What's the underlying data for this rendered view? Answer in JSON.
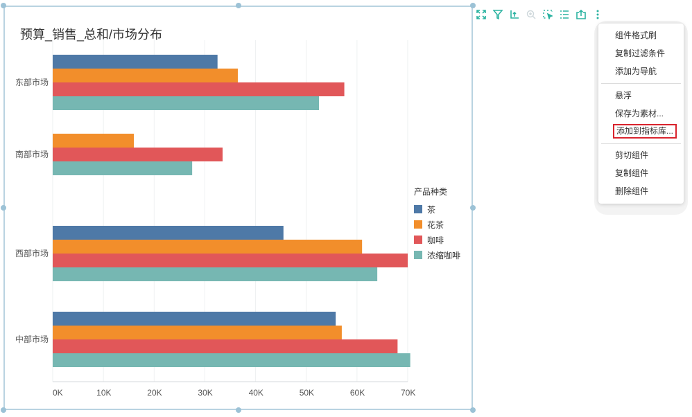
{
  "widget": {
    "title": "预算_销售_总和/市场分布"
  },
  "chart_data": {
    "type": "bar",
    "orientation": "horizontal",
    "title": "预算_销售_总和/市场分布",
    "categories": [
      "东部市场",
      "南部市场",
      "西部市场",
      "中部市场"
    ],
    "series": [
      {
        "name": "茶",
        "color": "#4e79a7",
        "values": [
          32500,
          null,
          45500,
          55800
        ]
      },
      {
        "name": "花茶",
        "color": "#f28e2b",
        "values": [
          36500,
          16000,
          61000,
          57000
        ]
      },
      {
        "name": "咖啡",
        "color": "#e15759",
        "values": [
          57500,
          33500,
          70000,
          68000
        ]
      },
      {
        "name": "浓缩咖啡",
        "color": "#76b7b2",
        "values": [
          52500,
          27500,
          64000,
          70500
        ]
      }
    ],
    "xlim": [
      0,
      70000
    ],
    "xticks": [
      "0K",
      "10K",
      "20K",
      "30K",
      "40K",
      "50K",
      "60K",
      "70K"
    ],
    "legend_title": "产品种类",
    "legend_position": "right",
    "grid": true
  },
  "toolbar": {
    "icons": [
      "fullscreen-icon",
      "filter-icon",
      "drill-icon",
      "zoom-icon",
      "select-icon",
      "list-icon",
      "export-icon",
      "more-icon"
    ]
  },
  "menu": {
    "items": [
      {
        "label": "组件格式刷"
      },
      {
        "label": "复制过滤条件"
      },
      {
        "label": "添加为导航"
      },
      {
        "label": "悬浮"
      },
      {
        "label": "保存为素材..."
      },
      {
        "label": "添加到指标库..."
      },
      {
        "label": "剪切组件"
      },
      {
        "label": "复制组件"
      },
      {
        "label": "删除组件"
      }
    ]
  }
}
